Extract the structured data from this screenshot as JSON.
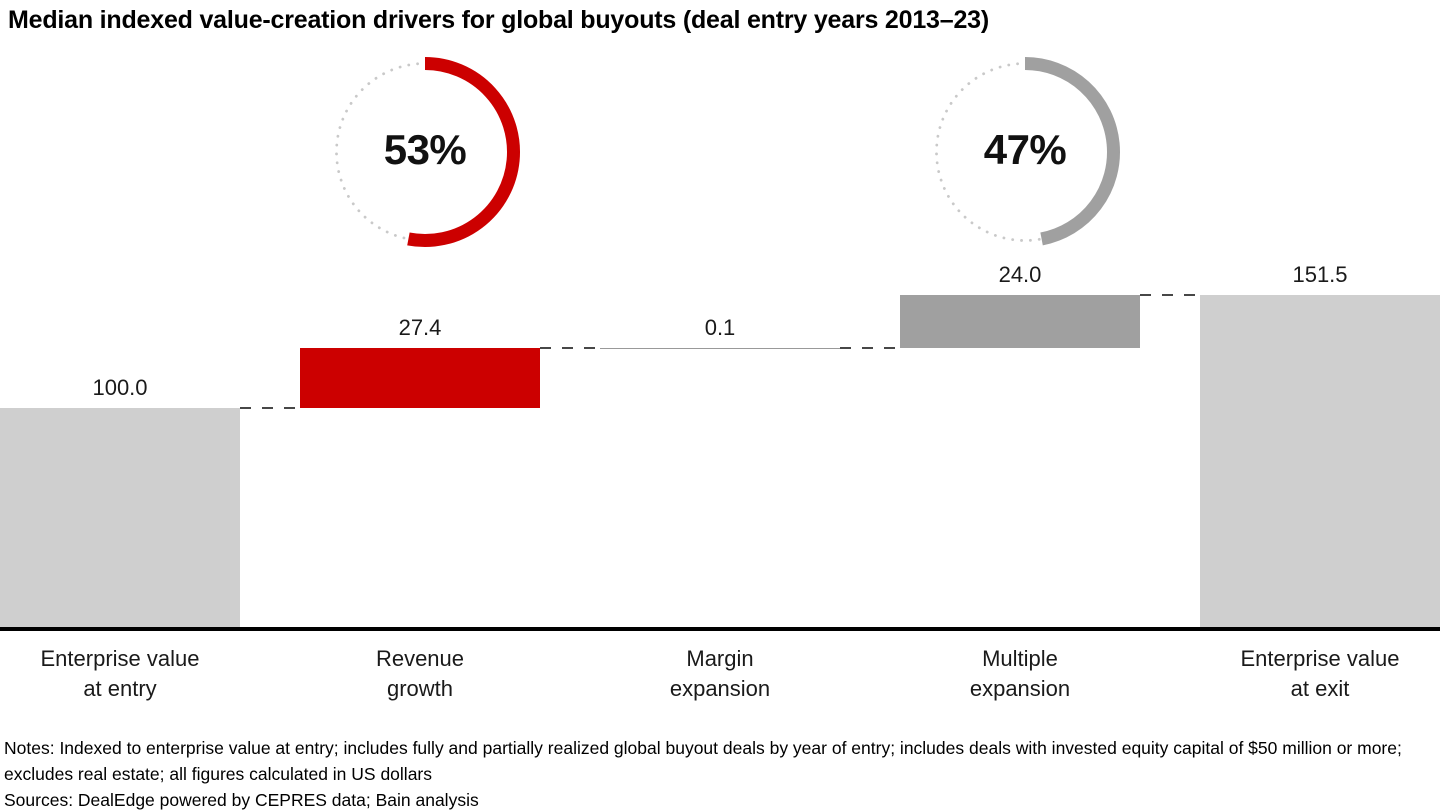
{
  "title": "Median indexed value-creation drivers for global buyouts (deal entry years 2013–23)",
  "chart_data": {
    "type": "bar",
    "subtype": "waterfall",
    "title": "Median indexed value-creation drivers for global buyouts (deal entry years 2013–23)",
    "categories": [
      "Enterprise value\nat entry",
      "Revenue\ngrowth",
      "Margin\nexpansion",
      "Multiple\nexpansion",
      "Enterprise value\nat exit"
    ],
    "values": [
      100.0,
      27.4,
      0.1,
      24.0,
      151.5
    ],
    "value_labels": [
      "100.0",
      "27.4",
      "0.1",
      "24.0",
      "151.5"
    ],
    "bar_types": [
      "total",
      "increase",
      "increase",
      "increase",
      "total"
    ],
    "bar_colors": [
      "#CFCFCF",
      "#CC0000",
      "#999999",
      "#A0A0A0",
      "#CFCFCF"
    ],
    "baseline": 0,
    "ylim": [
      0,
      160
    ],
    "grid": false,
    "legend": "none",
    "connector_color": "#474747",
    "axis_color": "#000000",
    "gauges": [
      {
        "label": "53%",
        "value": 53,
        "arc_color": "#CC0000",
        "dot_color": "#C9C9C9",
        "anchor_category_index": 1
      },
      {
        "label": "47%",
        "value": 47,
        "arc_color": "#A0A0A0",
        "dot_color": "#C9C9C9",
        "anchor_category_index": 3
      }
    ]
  },
  "footer": {
    "notes": "Notes: Indexed to enterprise value at entry; includes fully and partially realized global buyout deals by year of entry; includes deals with invested equity capital of $50 million or more; excludes real estate; all figures calculated in US dollars",
    "sources": "Sources: DealEdge powered by CEPRES data; Bain analysis"
  }
}
